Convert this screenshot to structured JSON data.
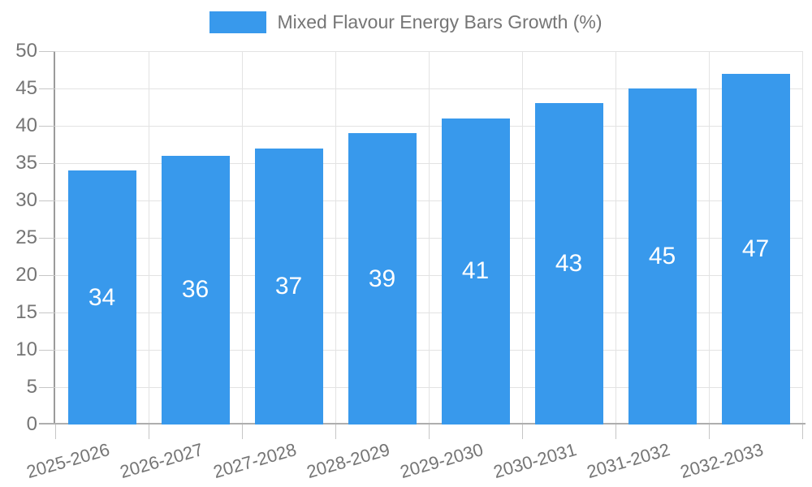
{
  "legend": {
    "label": "Mixed Flavour Energy Bars Growth (%)"
  },
  "chart_data": {
    "type": "bar",
    "title": "Mixed Flavour Energy Bars Growth (%)",
    "categories": [
      "2025-2026",
      "2026-2027",
      "2027-2028",
      "2028-2029",
      "2029-2030",
      "2030-2031",
      "2031-2032",
      "2032-2033"
    ],
    "values": [
      34,
      36,
      37,
      39,
      41,
      43,
      45,
      47
    ],
    "value_labels": [
      "34",
      "36",
      "37",
      "39",
      "41",
      "43",
      "45",
      "47"
    ],
    "xlabel": "",
    "ylabel": "",
    "ylim": [
      0,
      50
    ],
    "ytick_step": 5,
    "yticks": [
      0,
      5,
      10,
      15,
      20,
      25,
      30,
      35,
      40,
      45,
      50
    ],
    "grid": true,
    "legend_position": "top-center",
    "bar_color": "#3899ec",
    "value_label_color": "#ffffff",
    "grid_color": "#e3e3e3",
    "axis_color": "#9b9b9b",
    "tick_color": "#c6c6c6",
    "text_color": "#757575"
  }
}
